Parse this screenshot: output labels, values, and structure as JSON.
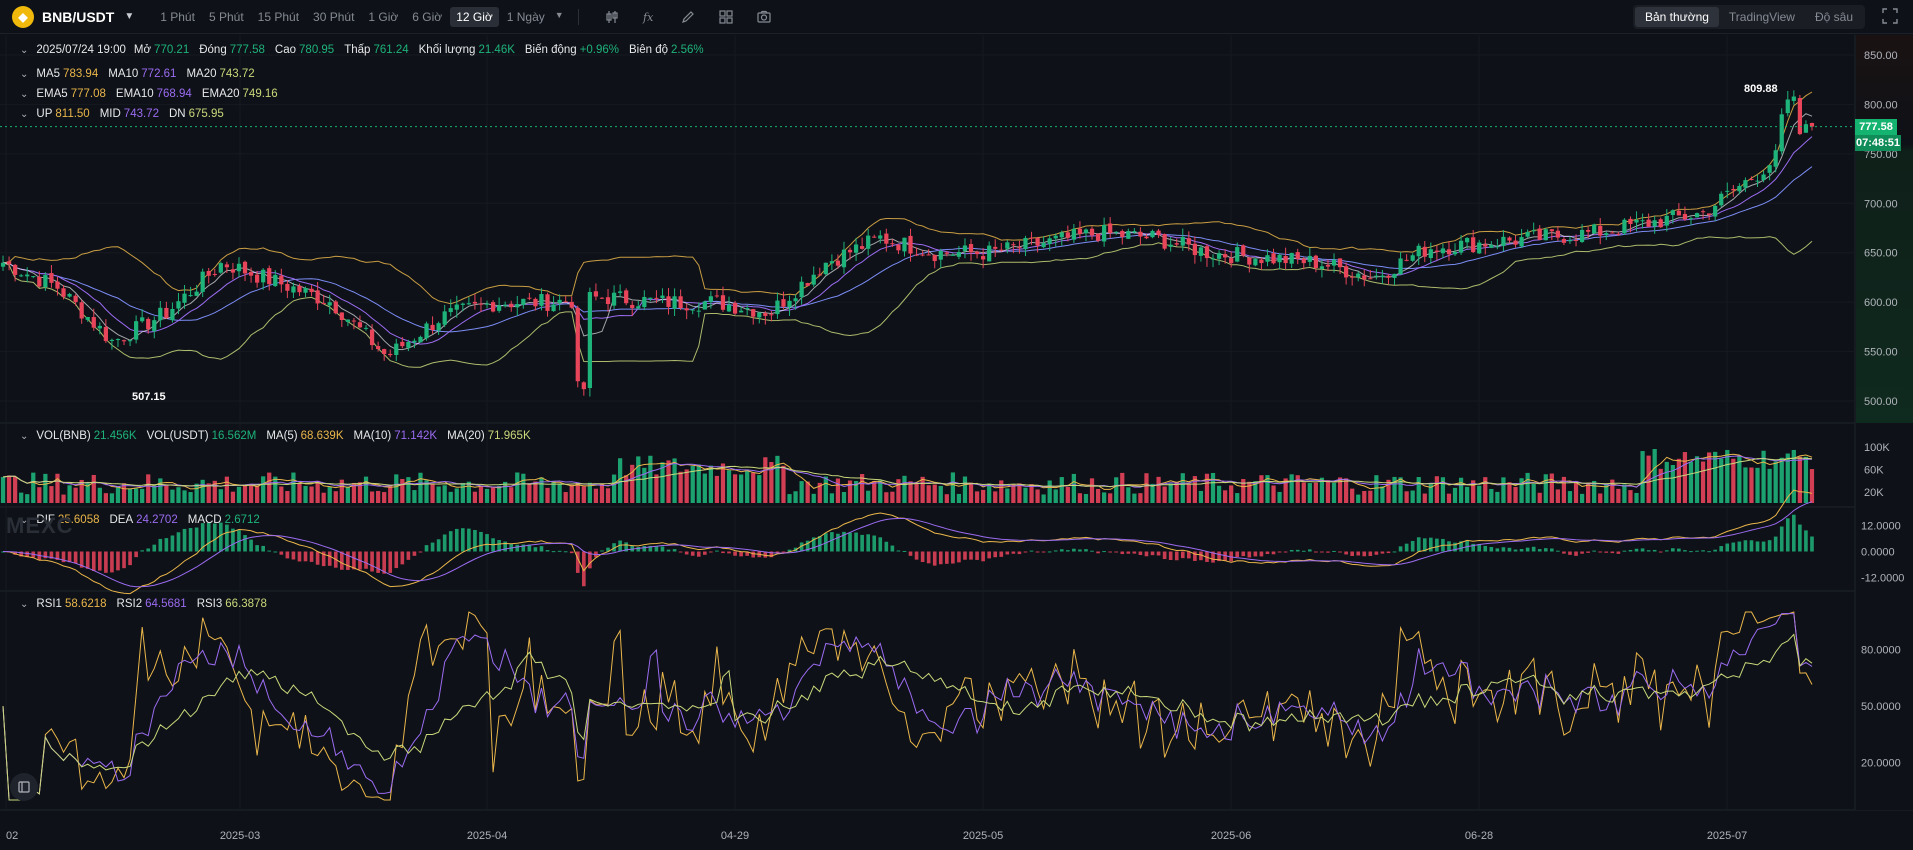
{
  "header": {
    "pair": "BNB/USDT",
    "intervals": [
      "1 Phút",
      "5 Phút",
      "15 Phút",
      "30 Phút",
      "1 Giờ",
      "6 Giờ",
      "12 Giờ",
      "1 Ngày"
    ],
    "active_interval": "12 Giờ",
    "modes": [
      "Bản thường",
      "TradingView",
      "Độ sâu"
    ],
    "active_mode": "Bản thường"
  },
  "ohlc": {
    "date": "2025/07/24 19:00",
    "open_label": "Mở",
    "open": "770.21",
    "close_label": "Đóng",
    "close": "777.58",
    "high_label": "Cao",
    "high": "780.95",
    "low_label": "Thấp",
    "low": "761.24",
    "vol_label": "Khối lượng",
    "vol": "21.46K",
    "change_label": "Biến động",
    "change": "+0.96%",
    "amp_label": "Biên độ",
    "amp": "2.56%"
  },
  "ma": {
    "ma5_label": "MA5",
    "ma5": "783.94",
    "ma10_label": "MA10",
    "ma10": "772.61",
    "ma20_label": "MA20",
    "ma20": "743.72"
  },
  "ema": {
    "ema5_label": "EMA5",
    "ema5": "777.08",
    "ema10_label": "EMA10",
    "ema10": "768.94",
    "ema20_label": "EMA20",
    "ema20": "749.16"
  },
  "boll": {
    "up_label": "UP",
    "up": "811.50",
    "mid_label": "MID",
    "mid": "743.72",
    "dn_label": "DN",
    "dn": "675.95"
  },
  "vol": {
    "bnb_label": "VOL(BNB)",
    "bnb": "21.456K",
    "usdt_label": "VOL(USDT)",
    "usdt": "16.562M",
    "ma5_label": "MA(5)",
    "ma5": "68.639K",
    "ma10_label": "MA(10)",
    "ma10": "71.142K",
    "ma20_label": "MA(20)",
    "ma20": "71.965K"
  },
  "macd": {
    "dif_label": "DIF",
    "dif": "25.6058",
    "dea_label": "DEA",
    "dea": "24.2702",
    "macd_label": "MACD",
    "macd": "2.6712"
  },
  "rsi": {
    "rsi1_label": "RSI1",
    "rsi1": "58.6218",
    "rsi2_label": "RSI2",
    "rsi2": "64.5681",
    "rsi3_label": "RSI3",
    "rsi3": "66.3878"
  },
  "price_axis": [
    "850.00",
    "800.00",
    "750.00",
    "700.00",
    "650.00",
    "600.00",
    "550.00",
    "500.00"
  ],
  "vol_axis": [
    "100K",
    "60K",
    "20K"
  ],
  "macd_axis": [
    "12.0000",
    "0.0000",
    "-12.0000"
  ],
  "rsi_axis": [
    "80.0000",
    "50.0000",
    "20.0000"
  ],
  "date_axis": [
    "02",
    "2025-03",
    "2025-04",
    "04-29",
    "2025-05",
    "2025-06",
    "06-28",
    "2025-07"
  ],
  "last_price": "777.58",
  "countdown": "07:48:51",
  "high_marker": "809.88",
  "low_marker": "507.15",
  "watermark": "MEXC",
  "colors": {
    "up": "#1eb37a",
    "down": "#e8445a",
    "bg": "#0e1117"
  },
  "chart_data": {
    "type": "candlestick",
    "price_range": [
      480,
      870
    ],
    "closes_anchor": [
      640,
      615,
      560,
      590,
      640,
      620,
      600,
      545,
      585,
      600,
      600,
      605,
      600,
      600,
      590,
      640,
      665,
      650,
      650,
      660,
      670,
      665,
      650,
      645,
      640,
      625,
      655,
      660,
      665,
      670,
      680,
      690,
      730,
      777.58
    ],
    "anchor_count": 34,
    "candle_count": 300
  }
}
